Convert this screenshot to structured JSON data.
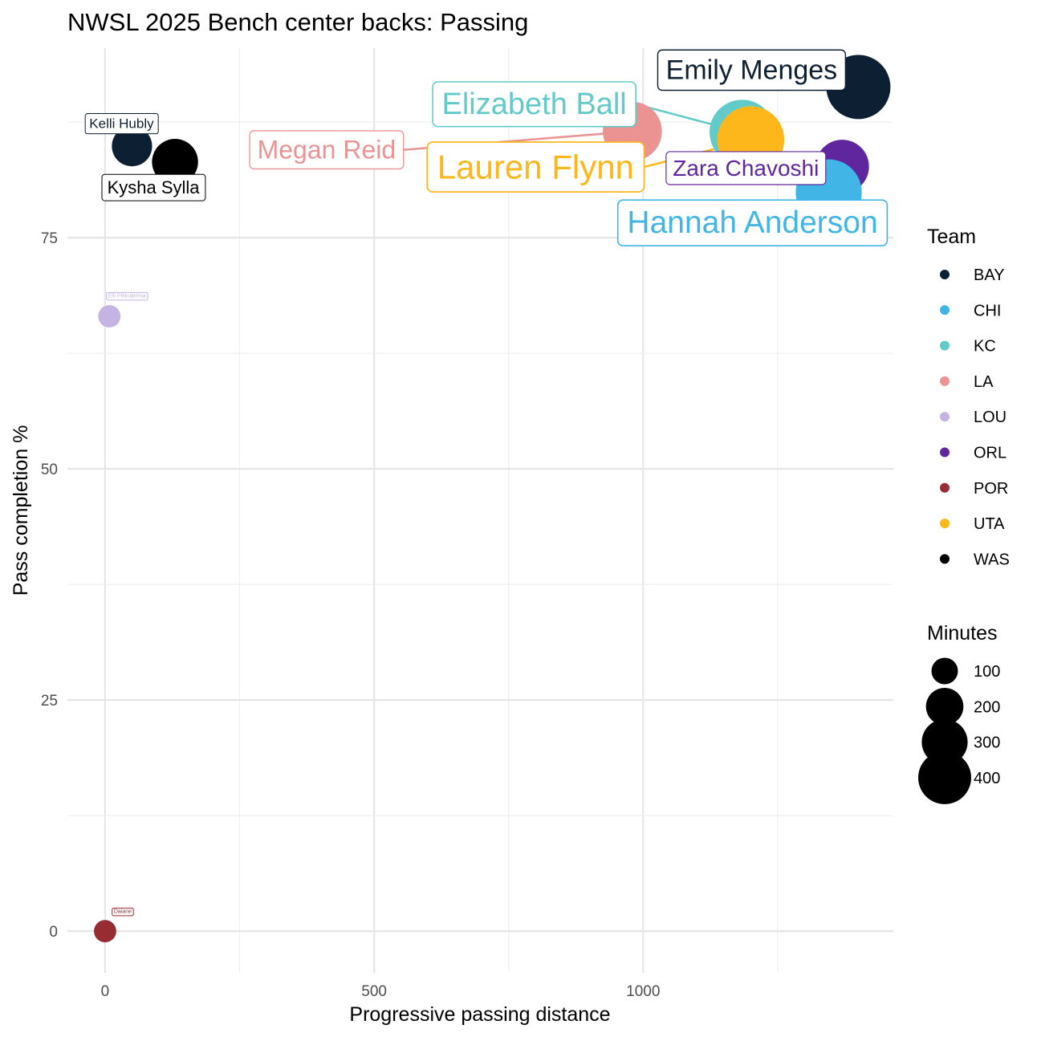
{
  "chart_data": {
    "type": "scatter",
    "title": "NWSL 2025 Bench center backs: Passing",
    "xlabel": "Progressive passing distance",
    "ylabel": "Pass completion %",
    "xlim": [
      -70,
      1465
    ],
    "ylim": [
      -4.5,
      95.5
    ],
    "x_ticks": [
      0,
      500,
      1000
    ],
    "y_ticks": [
      0,
      25,
      50,
      75
    ],
    "grid": true,
    "legend_position": "right",
    "team_legend_title": "Team",
    "size_legend_title": "Minutes",
    "teams": [
      {
        "name": "BAY",
        "color": "#0d2033"
      },
      {
        "name": "CHI",
        "color": "#41b6e6"
      },
      {
        "name": "KC",
        "color": "#62cbc9"
      },
      {
        "name": "LA",
        "color": "#eb9393"
      },
      {
        "name": "LOU",
        "color": "#c5b4e3"
      },
      {
        "name": "ORL",
        "color": "#60269e"
      },
      {
        "name": "POR",
        "color": "#972d33"
      },
      {
        "name": "UTA",
        "color": "#fdb71a"
      },
      {
        "name": "WAS",
        "color": "#000000"
      }
    ],
    "size_legend": [
      100,
      200,
      300,
      400
    ],
    "series": [
      {
        "name": "Emily Menges",
        "team": "BAY",
        "x": 1400,
        "y": 91.3,
        "minutes": 330
      },
      {
        "name": "Elizabeth Ball",
        "team": "KC",
        "x": 1184,
        "y": 86.4,
        "minutes": 340
      },
      {
        "name": "Lauren Flynn",
        "team": "UTA",
        "x": 1200,
        "y": 85.6,
        "minutes": 360
      },
      {
        "name": "Megan Reid",
        "team": "LA",
        "x": 980,
        "y": 86.5,
        "minutes": 280
      },
      {
        "name": "Zara Chavoshi",
        "team": "ORL",
        "x": 1370,
        "y": 82.7,
        "minutes": 230
      },
      {
        "name": "Hannah Anderson",
        "team": "CHI",
        "x": 1345,
        "y": 79.9,
        "minutes": 350
      },
      {
        "name": "Kelli Hubly",
        "team": "BAY",
        "x": 50,
        "y": 84.9,
        "minutes": 130
      },
      {
        "name": "Kysha Sylla",
        "team": "WAS",
        "x": 130,
        "y": 83.2,
        "minutes": 170
      },
      {
        "name": "Elli Pikkujamsa",
        "team": "LOU",
        "x": 8,
        "y": 66.5,
        "minutes": 40
      },
      {
        "name": "Daiane",
        "team": "POR",
        "x": 0,
        "y": 0,
        "minutes": 40
      }
    ]
  }
}
